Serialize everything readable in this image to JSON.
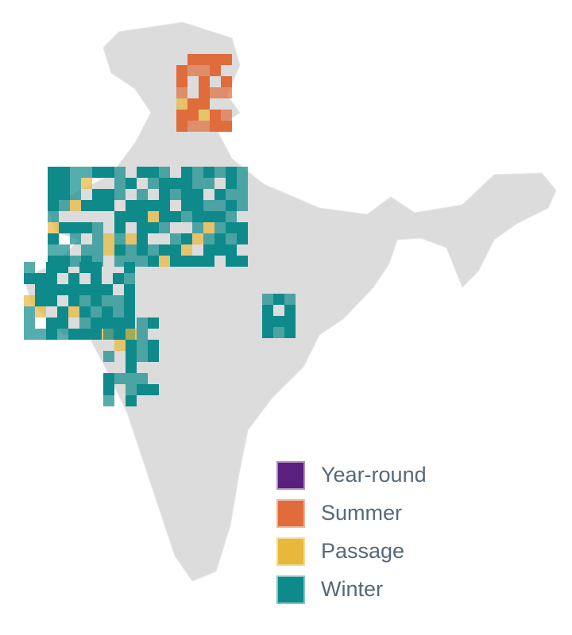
{
  "legend": {
    "items": [
      {
        "label": "Year-round",
        "color": "#5b1f7f"
      },
      {
        "label": "Summer",
        "color": "#e06c3c"
      },
      {
        "label": "Passage",
        "color": "#e8b83a"
      },
      {
        "label": "Winter",
        "color": "#0e8a8a"
      }
    ]
  }
}
